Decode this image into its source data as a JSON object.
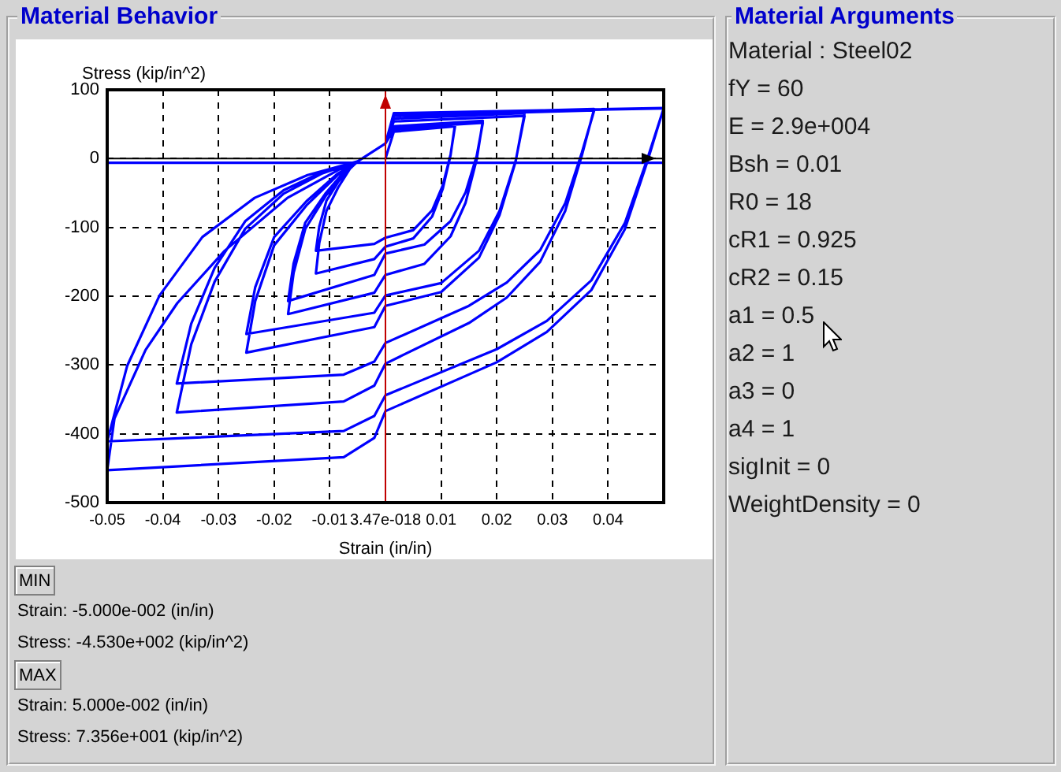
{
  "chart_data": [
    {
      "type": "line",
      "title": "Material Behavior",
      "xlabel": "Strain (in/in)",
      "ylabel": "Stress (kip/in^2)",
      "series": [
        {
          "color": "#0000ff",
          "x": [
            0,
            0.0015,
            0.0125,
            0.0117,
            0.0103,
            0.0084,
            0.005,
            0,
            -0.002,
            -0.0125,
            -0.0119,
            -0.0106,
            -0.0085,
            -0.0064,
            -0.005,
            0,
            0.0015,
            0.0125,
            0.0117,
            0.0103,
            0.0084,
            0.005,
            0,
            -0.002,
            -0.0125,
            -0.0119,
            -0.0106,
            -0.0085,
            -0.0064,
            -0.005,
            0,
            0.0015,
            0.0175,
            0.0164,
            0.0144,
            0.0117,
            0.007,
            0,
            -0.002,
            -0.0175,
            -0.0165,
            -0.0144,
            -0.0108,
            -0.0073,
            -0.005,
            0,
            0.0015,
            0.0175,
            0.0164,
            0.0144,
            0.0117,
            0.007,
            0,
            -0.002,
            -0.0175,
            -0.0165,
            -0.0144,
            -0.0108,
            -0.0073,
            -0.005,
            0,
            0.0015,
            0.025,
            0.0234,
            0.0205,
            0.0168,
            0.01,
            0,
            -0.002,
            -0.025,
            -0.0234,
            -0.02,
            -0.0142,
            -0.0086,
            -0.005,
            0,
            0.0015,
            0.025,
            0.0234,
            0.0205,
            0.0168,
            0.01,
            0,
            -0.002,
            -0.025,
            -0.0234,
            -0.02,
            -0.0142,
            -0.0086,
            -0.005,
            0,
            0.0015,
            0.0375,
            0.0353,
            0.0323,
            0.0278,
            0.0218,
            0.015,
            0,
            -0.002,
            -0.0075,
            -0.0375,
            -0.0349,
            -0.0307,
            -0.0252,
            -0.0183,
            -0.0115,
            -0.005,
            0,
            0.0015,
            0.0375,
            0.0353,
            0.0323,
            0.0278,
            0.0218,
            0.015,
            0,
            -0.002,
            -0.0075,
            -0.0375,
            -0.0349,
            -0.0307,
            -0.0252,
            -0.0183,
            -0.0115,
            -0.005,
            0,
            0.0015,
            0.05,
            0.047,
            0.043,
            0.037,
            0.029,
            0.02,
            0,
            -0.002,
            -0.0075,
            -0.05,
            -0.0464,
            -0.0406,
            -0.0329,
            -0.0235,
            -0.014,
            -0.005,
            0,
            0.0015,
            0.05,
            0.047,
            0.043,
            0.037,
            0.029,
            0.02,
            0,
            -0.002,
            -0.0075,
            -0.05,
            -0.0487,
            -0.0431,
            -0.0374,
            -0.0289,
            -0.0176,
            -0.0081,
            -0.005
          ],
          "values": [
            0,
            39,
            47,
            6,
            -39,
            -75,
            -104,
            -115,
            -124,
            -134,
            -99,
            -61,
            -34,
            -13,
            -4,
            22,
            42,
            50,
            5,
            -44,
            -84,
            -116,
            -128,
            -146,
            -167,
            -123,
            -76,
            -42,
            -15,
            -4,
            22,
            44,
            52,
            4,
            -49,
            -91,
            -125,
            -138,
            -169,
            -207,
            -152,
            -93,
            -51,
            -18,
            -4,
            22,
            47,
            55,
            -1,
            -64,
            -113,
            -153,
            -169,
            -195,
            -226,
            -166,
            -102,
            -55,
            -20,
            -4,
            22,
            54,
            62,
            -3,
            -76,
            -134,
            -181,
            -199,
            -224,
            -255,
            -187,
            -114,
            -62,
            -22,
            -4,
            22,
            58,
            66,
            -4,
            -82,
            -144,
            -194,
            -214,
            -245,
            -282,
            -207,
            -126,
            -68,
            -24,
            -4,
            22,
            62,
            70,
            9,
            -65,
            -133,
            -180,
            -214,
            -268,
            -295,
            -314,
            -327,
            -240,
            -159,
            -91,
            -46,
            -20,
            -4,
            22,
            64,
            72,
            5,
            -76,
            -150,
            -202,
            -239,
            -298,
            -330,
            -353,
            -369,
            -270,
            -179,
            -102,
            -51,
            -22,
            -4,
            22,
            65,
            73,
            -2,
            -94,
            -177,
            -236,
            -277,
            -344,
            -374,
            -396,
            -411,
            -301,
            -199,
            -114,
            -57,
            -24,
            -4,
            22,
            66,
            73.56,
            -6,
            -103,
            -191,
            -252,
            -296,
            -367,
            -406,
            -434,
            -453,
            -378,
            -278,
            -210,
            -134,
            -57,
            -15,
            -4
          ]
        },
        {
          "color": "#0000ff",
          "x": [
            -0.05,
            0.05
          ],
          "values": [
            -6,
            -6
          ]
        }
      ],
      "xlim": [
        -0.05,
        0.05
      ],
      "ylim": [
        -500,
        100
      ],
      "xticks": [
        -0.05,
        -0.04,
        -0.03,
        -0.02,
        -0.01,
        {
          "value": 3.47e-18,
          "label": "3.47e-018"
        },
        0.01,
        0.02,
        0.03,
        0.04
      ],
      "yticks": [
        -500,
        -400,
        -300,
        -200,
        -100,
        0,
        100
      ],
      "grid": true,
      "ref_lines": [
        {
          "axis": "y",
          "value": 0,
          "color": "#000000"
        },
        {
          "axis": "x",
          "value": 0,
          "color": "#c00000"
        }
      ],
      "annotations": [
        "MIN",
        "Strain: -5.000e-002 (in/in)",
        "Stress: -4.530e+002 (kip/in^2)",
        "MAX",
        "Strain: 5.000e-002 (in/in)",
        "Stress: 7.356e+001 (kip/in^2)"
      ]
    },
    {
      "type": "other",
      "title": "Material Arguments",
      "annotations": [
        "Material : Steel02",
        "fY = 60",
        "E = 2.9e+004",
        "Bsh = 0.01",
        "R0 = 18",
        "cR1 = 0.925",
        "cR2 = 0.15",
        "a1 = 0.5",
        "a2 = 1",
        "a3 = 0",
        "a4 = 1",
        "sigInit = 0",
        "WeightDensity = 0"
      ]
    }
  ]
}
